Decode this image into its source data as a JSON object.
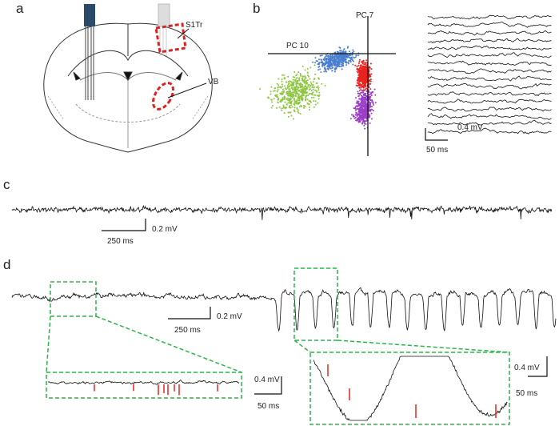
{
  "panels": {
    "a": {
      "label": "a",
      "regions": [
        "S1Tr",
        "VB"
      ]
    },
    "b": {
      "label": "b",
      "axes": [
        "PC 7",
        "PC 10"
      ],
      "scale": {
        "amplitude": "0.4 mV",
        "time": "50 ms"
      }
    },
    "c": {
      "label": "c",
      "scale": {
        "time": "250 ms",
        "amplitude": "0.2 mV"
      }
    },
    "d": {
      "label": "d",
      "scale": {
        "time": "250 ms",
        "amplitude": "0.2 mV"
      },
      "zoom_left_scale": {
        "amplitude": "0.4 mV",
        "time": "50 ms"
      },
      "zoom_right_scale": {
        "amplitude": "0.4 mV",
        "time": "50 ms"
      }
    }
  }
}
